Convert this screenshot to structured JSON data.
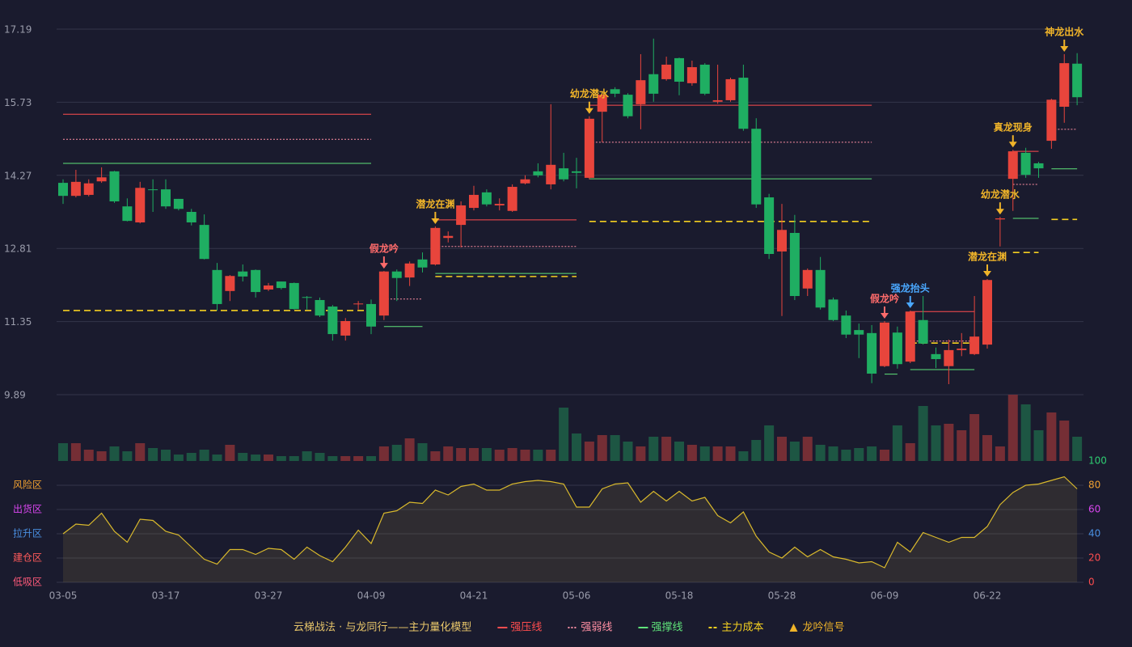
{
  "chart_data": [
    {
      "type": "candlestick",
      "categories": [
        "03-05",
        null,
        null,
        null,
        null,
        null,
        null,
        null,
        "03-17",
        null,
        null,
        null,
        null,
        null,
        null,
        null,
        "03-27",
        null,
        null,
        null,
        null,
        null,
        null,
        null,
        "04-09",
        null,
        null,
        null,
        null,
        null,
        null,
        null,
        "04-21",
        null,
        null,
        null,
        null,
        null,
        null,
        null,
        "05-06",
        null,
        null,
        null,
        null,
        null,
        null,
        null,
        "05-18",
        null,
        null,
        null,
        null,
        null,
        null,
        null,
        "05-28",
        null,
        null,
        null,
        null,
        null,
        null,
        null,
        "06-09",
        null,
        null,
        null,
        null,
        null,
        null,
        null,
        "06-22",
        null,
        null,
        null,
        null,
        null,
        null,
        null
      ],
      "open": [
        14.12,
        13.86,
        13.88,
        14.15,
        14.35,
        13.65,
        13.33,
        13.99,
        13.99,
        13.8,
        13.54,
        13.28,
        12.38,
        11.96,
        12.35,
        12.38,
        11.99,
        12.15,
        12.12,
        11.84,
        11.78,
        11.65,
        11.07,
        11.7,
        11.7,
        11.47,
        12.35,
        12.23,
        12.59,
        12.49,
        13.02,
        13.28,
        13.62,
        13.93,
        13.67,
        13.56,
        14.11,
        14.35,
        14.09,
        14.41,
        14.35,
        14.22,
        15.54,
        15.99,
        15.88,
        15.69,
        16.29,
        16.19,
        16.61,
        16.11,
        16.48,
        15.74,
        15.77,
        16.22,
        15.2,
        13.83,
        12.75,
        13.12,
        12.01,
        12.38,
        11.79,
        11.47,
        11.18,
        11.12,
        10.46,
        11.13,
        10.55,
        11.38,
        10.7,
        10.46,
        10.78,
        10.7,
        10.89,
        13.39,
        14.2,
        14.72,
        14.51,
        14.96,
        15.64,
        16.5
      ],
      "high": [
        14.19,
        14.38,
        14.19,
        14.43,
        14.36,
        13.81,
        14.14,
        14.19,
        14.19,
        13.8,
        13.6,
        13.49,
        12.52,
        12.28,
        12.49,
        12.39,
        12.12,
        12.15,
        12.13,
        11.86,
        11.83,
        11.68,
        11.42,
        11.76,
        11.79,
        12.36,
        12.39,
        12.55,
        12.73,
        13.25,
        13.15,
        13.75,
        14.06,
        13.99,
        13.81,
        14.09,
        14.27,
        14.51,
        15.69,
        14.72,
        14.62,
        15.45,
        15.9,
        16.03,
        15.91,
        16.69,
        17.0,
        16.64,
        16.62,
        16.56,
        16.51,
        16.48,
        16.22,
        16.48,
        15.41,
        13.9,
        13.7,
        13.48,
        12.41,
        12.64,
        11.83,
        11.57,
        11.31,
        11.28,
        11.36,
        11.25,
        11.57,
        11.86,
        10.83,
        10.99,
        11.12,
        11.86,
        12.2,
        13.44,
        14.78,
        14.82,
        14.54,
        15.8,
        16.69,
        16.71
      ],
      "low": [
        13.7,
        13.83,
        13.85,
        14.12,
        13.72,
        13.35,
        13.31,
        13.54,
        13.6,
        13.57,
        13.27,
        12.59,
        11.57,
        11.76,
        12.15,
        11.83,
        11.96,
        11.99,
        11.59,
        11.59,
        11.44,
        10.97,
        10.97,
        11.59,
        11.1,
        11.38,
        11.76,
        12.06,
        12.33,
        12.47,
        12.93,
        12.83,
        13.57,
        13.65,
        13.57,
        13.54,
        14.09,
        14.23,
        13.99,
        14.15,
        14.01,
        14.19,
        14.93,
        15.83,
        15.41,
        15.19,
        15.74,
        16.16,
        15.87,
        16.06,
        15.87,
        15.7,
        15.74,
        15.16,
        13.62,
        12.6,
        11.46,
        11.78,
        11.86,
        11.59,
        11.36,
        11.02,
        10.62,
        10.12,
        10.44,
        10.41,
        10.52,
        10.89,
        10.42,
        10.1,
        10.66,
        10.68,
        10.81,
        12.85,
        13.56,
        14.22,
        14.22,
        14.8,
        15.32,
        15.67
      ],
      "close": [
        13.86,
        14.14,
        14.11,
        14.23,
        13.75,
        13.36,
        14.02,
        13.98,
        13.65,
        13.6,
        13.33,
        12.6,
        11.7,
        12.26,
        12.25,
        11.94,
        12.07,
        12.02,
        11.6,
        11.83,
        11.47,
        11.1,
        11.36,
        11.71,
        11.25,
        12.35,
        12.22,
        12.51,
        12.43,
        13.22,
        13.06,
        13.67,
        13.88,
        13.69,
        13.7,
        14.04,
        14.19,
        14.27,
        14.48,
        14.19,
        14.32,
        15.4,
        15.88,
        15.9,
        15.45,
        16.17,
        15.9,
        16.48,
        16.14,
        16.43,
        15.9,
        15.77,
        16.19,
        15.2,
        13.69,
        12.7,
        13.18,
        11.86,
        12.38,
        11.63,
        11.38,
        11.09,
        11.09,
        10.31,
        11.33,
        10.5,
        11.55,
        10.91,
        10.6,
        10.78,
        10.81,
        11.05,
        12.18,
        13.41,
        14.75,
        14.28,
        14.41,
        15.78,
        16.51,
        15.83
      ],
      "ylim": [
        9.89,
        17.19
      ],
      "yticks": [
        9.89,
        11.35,
        12.81,
        14.27,
        15.73,
        17.19
      ],
      "grid": true,
      "up_color": "#e8453c",
      "down_color": "#1fae62",
      "signals": [
        {
          "label": "假龙吟",
          "at": 25,
          "color": "#ff6b6b"
        },
        {
          "label": "潜龙在渊",
          "at": 29,
          "color": "#f0b429"
        },
        {
          "label": "幼龙潜水",
          "at": 41,
          "color": "#f0b429"
        },
        {
          "label": "假龙吟",
          "at": 64,
          "color": "#ff6b6b"
        },
        {
          "label": "强龙抬头",
          "at": 66,
          "color": "#4aa8ff"
        },
        {
          "label": "潜龙在渊",
          "at": 72,
          "color": "#f0b429"
        },
        {
          "label": "幼龙潜水",
          "at": 73,
          "color": "#f0b429"
        },
        {
          "label": "真龙现身",
          "at": 74,
          "color": "#f0b429"
        },
        {
          "label": "神龙出水",
          "at": 78,
          "color": "#f0b429"
        }
      ]
    },
    {
      "type": "bar",
      "values": [
        22,
        22,
        14,
        12,
        18,
        12,
        22,
        16,
        14,
        8,
        10,
        14,
        8,
        20,
        10,
        8,
        8,
        6,
        6,
        12,
        10,
        6,
        6,
        6,
        6,
        18,
        20,
        28,
        22,
        12,
        18,
        16,
        16,
        16,
        14,
        16,
        14,
        14,
        14,
        66,
        34,
        24,
        32,
        32,
        24,
        18,
        30,
        30,
        24,
        20,
        18,
        18,
        18,
        12,
        26,
        44,
        30,
        24,
        30,
        20,
        18,
        14,
        16,
        18,
        14,
        44,
        22,
        68,
        44,
        46,
        38,
        58,
        32,
        18,
        82,
        70,
        38,
        60,
        50,
        30
      ]
    },
    {
      "type": "line",
      "color": "#d9b92c",
      "values": [
        40,
        48,
        47,
        57,
        42,
        33,
        52,
        51,
        42,
        39,
        29,
        19,
        15,
        27,
        27,
        23,
        28,
        27,
        19,
        29,
        22,
        17,
        29,
        43,
        32,
        57,
        59,
        66,
        65,
        76,
        72,
        79,
        81,
        76,
        76,
        81,
        83,
        84,
        83,
        81,
        62,
        62,
        77,
        81,
        82,
        66,
        75,
        67,
        75,
        67,
        70,
        55,
        49,
        58,
        38,
        25,
        20,
        29,
        21,
        27,
        21,
        19,
        16,
        17,
        12,
        33,
        25,
        41,
        37,
        33,
        37,
        37,
        46,
        64,
        74,
        80,
        81,
        84,
        87,
        77
      ],
      "ylim": [
        0,
        100
      ],
      "yticks": [
        0,
        20,
        40,
        60,
        80,
        100
      ],
      "ytick_colors": [
        "#ff4d4f",
        "#ff4d4f",
        "#4a90e2",
        "#d946ef",
        "#f0a030",
        "#2ecc71"
      ],
      "zones": [
        {
          "value": 80,
          "label": "风险区",
          "color": "#f0a030"
        },
        {
          "value": 60,
          "label": "出货区",
          "color": "#d946ef"
        },
        {
          "value": 40,
          "label": "拉升区",
          "color": "#4a90e2"
        },
        {
          "value": 20,
          "label": "建仓区",
          "color": "#ff5a5a"
        },
        {
          "value": 0,
          "label": "低吸区",
          "color": "#ff5a7a"
        }
      ]
    }
  ],
  "legend": {
    "title": "云梯战法 · 与龙同行——主力量化模型",
    "title_color": "#e8c66a",
    "items": [
      {
        "label": "强压线",
        "color": "#ff4d4f",
        "style": "solid",
        "levels": [
          {
            "from": 0,
            "to": 24,
            "value": 15.49
          },
          {
            "from": 29,
            "to": 40,
            "value": 13.38
          },
          {
            "from": 41,
            "to": 63,
            "value": 15.67
          },
          {
            "from": 66,
            "to": 71,
            "value": 11.55
          },
          {
            "from": 74,
            "to": 76,
            "value": 14.75
          }
        ]
      },
      {
        "label": "强弱线",
        "color": "#ff8fa3",
        "style": "dotted",
        "levels": [
          {
            "from": 0,
            "to": 24,
            "value": 14.99
          },
          {
            "from": 25,
            "to": 28,
            "value": 11.8
          },
          {
            "from": 29,
            "to": 40,
            "value": 12.85
          },
          {
            "from": 41,
            "to": 63,
            "value": 14.93
          },
          {
            "from": 66,
            "to": 71,
            "value": 10.96
          },
          {
            "from": 74,
            "to": 76,
            "value": 14.09
          },
          {
            "from": 77,
            "to": 79,
            "value": 15.19
          }
        ]
      },
      {
        "label": "强撑线",
        "color": "#5fe37a",
        "style": "solid",
        "levels": [
          {
            "from": 0,
            "to": 24,
            "value": 14.51
          },
          {
            "from": 25,
            "to": 28,
            "value": 11.25
          },
          {
            "from": 29,
            "to": 40,
            "value": 12.31
          },
          {
            "from": 41,
            "to": 63,
            "value": 14.2
          },
          {
            "from": 64,
            "to": 65,
            "value": 10.3
          },
          {
            "from": 66,
            "to": 71,
            "value": 10.39
          },
          {
            "from": 74,
            "to": 76,
            "value": 13.41
          },
          {
            "from": 77,
            "to": 79,
            "value": 14.4
          }
        ]
      },
      {
        "label": "主力成本",
        "color": "#f5d020",
        "style": "dashed",
        "levels": [
          {
            "from": 0,
            "to": 24,
            "value": 11.57
          },
          {
            "from": 29,
            "to": 40,
            "value": 12.25
          },
          {
            "from": 41,
            "to": 63,
            "value": 13.35
          },
          {
            "from": 66,
            "to": 71,
            "value": 10.92
          },
          {
            "from": 74,
            "to": 76,
            "value": 12.73
          },
          {
            "from": 77,
            "to": 79,
            "value": 13.39
          }
        ]
      },
      {
        "label": "龙吟信号",
        "color": "#f0b429",
        "style": "marker"
      }
    ]
  }
}
